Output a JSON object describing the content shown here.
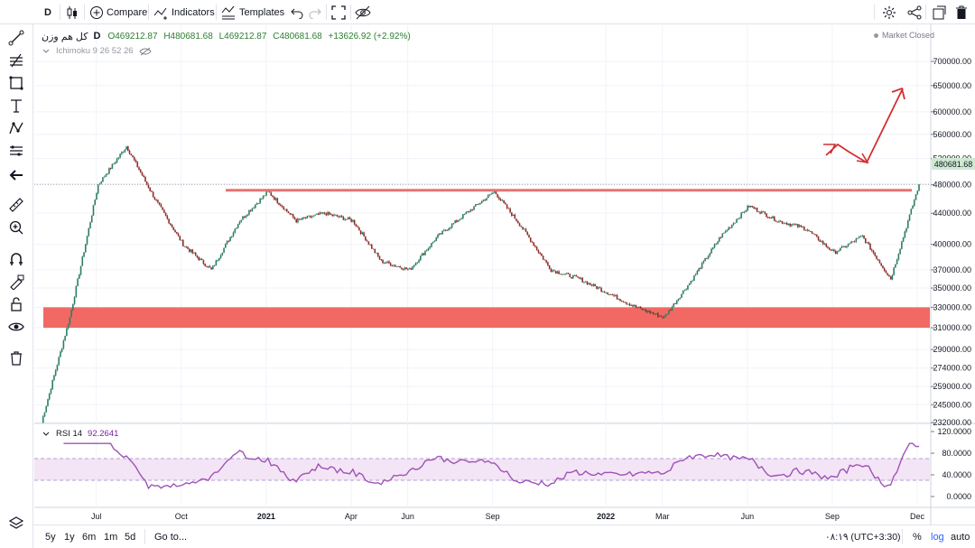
{
  "toolbar": {
    "interval": "D",
    "compare_label": "Compare",
    "indicators_label": "Indicators",
    "templates_label": "Templates"
  },
  "legend": {
    "symbol": "کل هم وزن",
    "interval": "D",
    "open": "O469212.87",
    "high": "H480681.68",
    "low": "L469212.87",
    "close": "C480681.68",
    "change": "+13626.92 (+2.92%)",
    "market_status": "Market Closed"
  },
  "indicators": {
    "ichimoku_label": "Ichimoku 9 26 52 26",
    "rsi_label": "RSI 14",
    "rsi_value": "92.2641"
  },
  "price_axis": {
    "ticks": [
      "700000.00",
      "650000.00",
      "600000.00",
      "560000.00",
      "520000.00",
      "480000.00",
      "440000.00",
      "400000.00",
      "370000.00",
      "350000.00",
      "330000.00",
      "310000.00",
      "290000.00",
      "274000.00",
      "259000.00",
      "245000.00",
      "232000.00"
    ],
    "current_price": "480681.68"
  },
  "rsi_axis": {
    "ticks": [
      "120.0000",
      "80.0000",
      "40.0000",
      "0.0000"
    ]
  },
  "time_axis": {
    "labels": [
      "Jul",
      "Oct",
      "2021",
      "Apr",
      "Jun",
      "Sep",
      "2022",
      "Mar",
      "Jun",
      "Sep",
      "Dec"
    ]
  },
  "bottombar": {
    "ranges": [
      "5y",
      "1y",
      "6m",
      "1m",
      "5d"
    ],
    "goto_label": "Go to...",
    "clock": "۰۸:۱۹ (UTC+3:30)",
    "percent_label": "%",
    "log_label": "log",
    "auto_label": "auto"
  },
  "colors": {
    "candle_up": "#26a69a",
    "candle_down": "#ef5350",
    "resistance_line": "#e57373",
    "support_zone": "#f26964",
    "annotation_arrow": "#d32f2f",
    "rsi_line": "#a052b8",
    "rsi_band": "#f3e5f5",
    "log_active": "#2962ff"
  },
  "chart_data": {
    "type": "candlestick",
    "title": "",
    "y_scale": "log",
    "ylim": [
      232000,
      700000
    ],
    "x": [
      "2020-05",
      "2020-06",
      "2020-07",
      "2020-08",
      "2020-09",
      "2020-10",
      "2020-11",
      "2020-12",
      "2021-01",
      "2021-02",
      "2021-03",
      "2021-04",
      "2021-05",
      "2021-06",
      "2021-07",
      "2021-08",
      "2021-09",
      "2021-10",
      "2021-11",
      "2021-12",
      "2022-01",
      "2022-02",
      "2022-03",
      "2022-04",
      "2022-05",
      "2022-06",
      "2022-07",
      "2022-08",
      "2022-09",
      "2022-10",
      "2022-11",
      "2022-12"
    ],
    "close": [
      232000,
      320000,
      480000,
      540000,
      460000,
      400000,
      370000,
      430000,
      470000,
      430000,
      440000,
      430000,
      380000,
      370000,
      410000,
      440000,
      470000,
      420000,
      370000,
      360000,
      345000,
      330000,
      320000,
      360000,
      410000,
      450000,
      430000,
      420000,
      390000,
      410000,
      360000,
      480681
    ],
    "resistance_level": 472000,
    "support_zone": [
      310000,
      330000
    ],
    "rsi": {
      "name": "RSI 14",
      "ylim": [
        -10,
        120
      ],
      "bands": [
        30,
        70
      ],
      "last": 92.2641
    }
  }
}
